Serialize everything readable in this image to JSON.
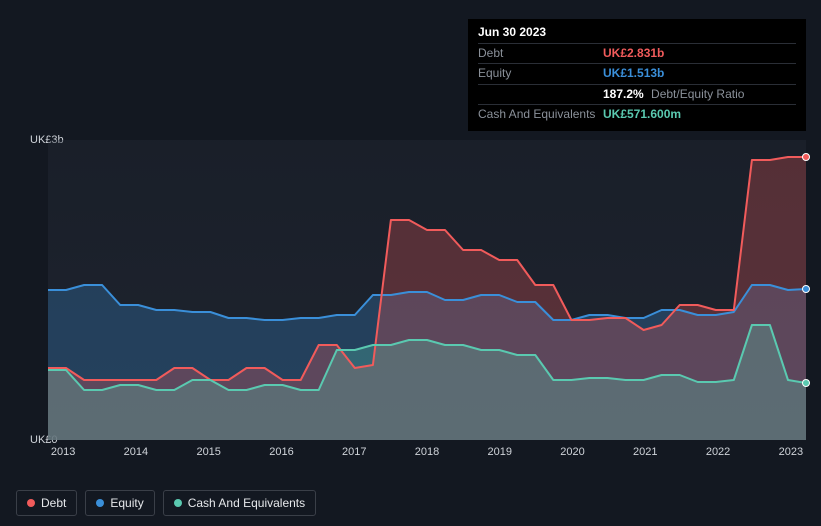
{
  "tooltip": {
    "date": "Jun 30 2023",
    "debt_label": "Debt",
    "debt_value": "UK£2.831b",
    "equity_label": "Equity",
    "equity_value": "UK£1.513b",
    "ratio_value": "187.2%",
    "ratio_label": "Debt/Equity Ratio",
    "cash_label": "Cash And Equivalents",
    "cash_value": "UK£571.600m"
  },
  "chart": {
    "type": "area",
    "background_color": "#131821",
    "plot_bg": "rgba(35,41,53,0.6)",
    "y_axis": {
      "min": 0,
      "max": 3,
      "labels": [
        "UK£0",
        "UK£3b"
      ],
      "label_fontsize": 11,
      "label_color": "#cfd3d9"
    },
    "x_axis": {
      "ticks": [
        "2013",
        "2014",
        "2015",
        "2016",
        "2017",
        "2018",
        "2019",
        "2020",
        "2021",
        "2022",
        "2023"
      ],
      "label_fontsize": 11,
      "label_color": "#cfd3d9"
    },
    "series": {
      "debt": {
        "color": "#f15b5b",
        "fill_opacity": 0.28,
        "line_width": 2,
        "data": [
          0.72,
          0.72,
          0.6,
          0.6,
          0.6,
          0.6,
          0.6,
          0.72,
          0.72,
          0.6,
          0.6,
          0.72,
          0.72,
          0.6,
          0.6,
          0.95,
          0.95,
          0.72,
          0.75,
          2.2,
          2.2,
          2.1,
          2.1,
          1.9,
          1.9,
          1.8,
          1.8,
          1.55,
          1.55,
          1.2,
          1.2,
          1.22,
          1.22,
          1.1,
          1.15,
          1.35,
          1.35,
          1.3,
          1.3,
          2.8,
          2.8,
          2.83,
          2.83
        ]
      },
      "equity": {
        "color": "#3a8fd9",
        "fill_opacity": 0.28,
        "line_width": 2,
        "data": [
          1.5,
          1.5,
          1.55,
          1.55,
          1.35,
          1.35,
          1.3,
          1.3,
          1.28,
          1.28,
          1.22,
          1.22,
          1.2,
          1.2,
          1.22,
          1.22,
          1.25,
          1.25,
          1.45,
          1.45,
          1.48,
          1.48,
          1.4,
          1.4,
          1.45,
          1.45,
          1.38,
          1.38,
          1.2,
          1.2,
          1.25,
          1.25,
          1.22,
          1.22,
          1.3,
          1.3,
          1.25,
          1.25,
          1.28,
          1.55,
          1.55,
          1.5,
          1.51
        ]
      },
      "cash": {
        "color": "#5ac9b0",
        "fill_opacity": 0.28,
        "line_width": 2,
        "data": [
          0.7,
          0.7,
          0.5,
          0.5,
          0.55,
          0.55,
          0.5,
          0.5,
          0.6,
          0.6,
          0.5,
          0.5,
          0.55,
          0.55,
          0.5,
          0.5,
          0.9,
          0.9,
          0.95,
          0.95,
          1.0,
          1.0,
          0.95,
          0.95,
          0.9,
          0.9,
          0.85,
          0.85,
          0.6,
          0.6,
          0.62,
          0.62,
          0.6,
          0.6,
          0.65,
          0.65,
          0.58,
          0.58,
          0.6,
          1.15,
          1.15,
          0.6,
          0.57
        ]
      }
    },
    "endpoint_markers": [
      {
        "series": "debt",
        "value": 2.83,
        "color": "#f15b5b"
      },
      {
        "series": "equity",
        "value": 1.51,
        "color": "#3a8fd9"
      },
      {
        "series": "cash",
        "value": 0.57,
        "color": "#5ac9b0"
      }
    ]
  },
  "legend": {
    "items": [
      {
        "key": "debt",
        "label": "Debt",
        "color": "#f15b5b"
      },
      {
        "key": "equity",
        "label": "Equity",
        "color": "#3a8fd9"
      },
      {
        "key": "cash",
        "label": "Cash And Equivalents",
        "color": "#5ac9b0"
      }
    ],
    "border_color": "#3a3f48",
    "text_color": "#e6e8eb",
    "fontsize": 12
  }
}
